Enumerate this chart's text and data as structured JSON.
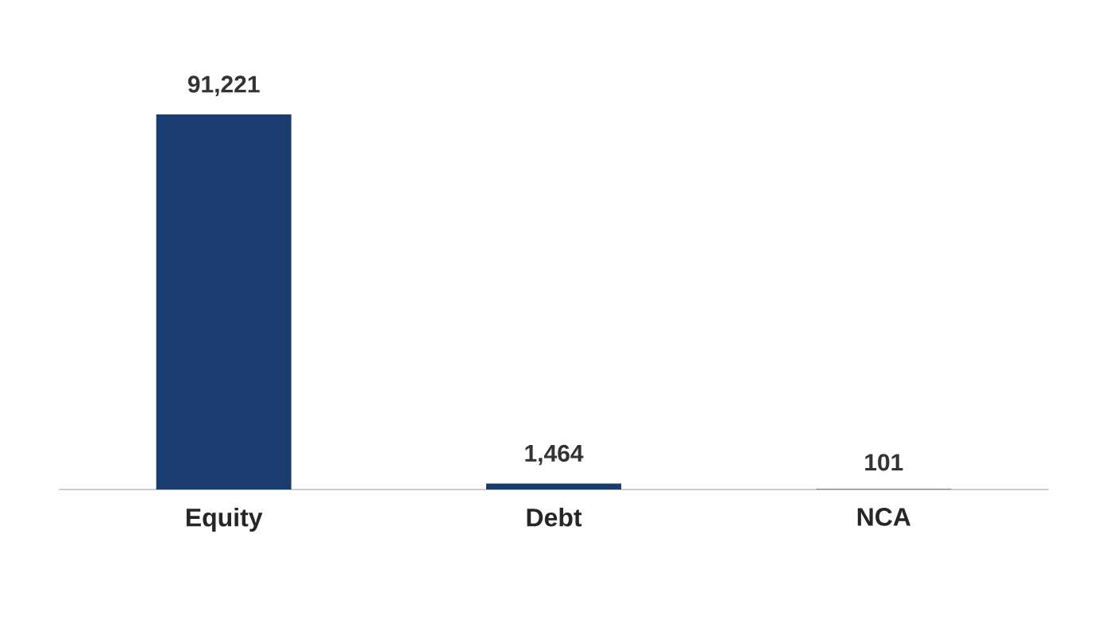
{
  "chart_data": {
    "type": "bar",
    "categories": [
      "Equity",
      "Debt",
      "NCA"
    ],
    "values": [
      91221,
      1464,
      101
    ],
    "color": "#1b3c6e",
    "value_labels": [
      "91,221",
      "1,464",
      "101"
    ]
  }
}
